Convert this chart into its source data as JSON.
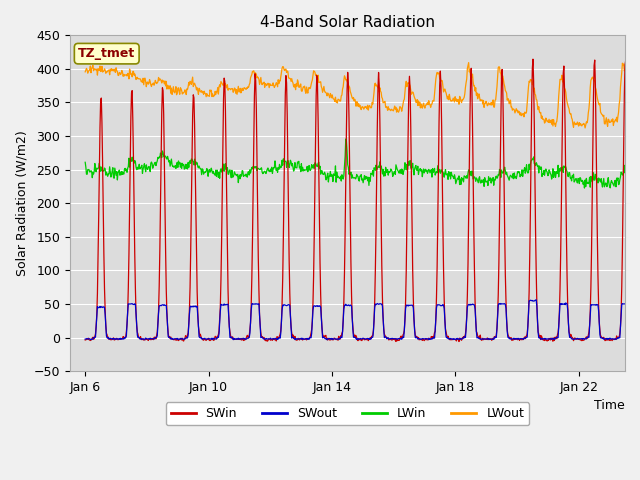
{
  "title": "4-Band Solar Radiation",
  "xlabel": "Time",
  "ylabel": "Solar Radiation (W/m2)",
  "annotation": "TZ_tmet",
  "ylim": [
    -50,
    450
  ],
  "yticks": [
    -50,
    0,
    50,
    100,
    150,
    200,
    250,
    300,
    350,
    400,
    450
  ],
  "xlim_start_day": 5.5,
  "xlim_end_day": 23.5,
  "xtick_labels": [
    "Jan 6",
    "Jan 10",
    "Jan 14",
    "Jan 18",
    "Jan 22"
  ],
  "xtick_days": [
    6,
    10,
    14,
    18,
    22
  ],
  "colors": {
    "SWin": "#cc0000",
    "SWout": "#0000cc",
    "LWin": "#00cc00",
    "LWout": "#ff9900"
  },
  "fig_facecolor": "#f0f0f0",
  "plot_bg_color": "#dcdcdc",
  "title_fontsize": 11,
  "label_fontsize": 9,
  "tick_fontsize": 9,
  "legend_fontsize": 9
}
